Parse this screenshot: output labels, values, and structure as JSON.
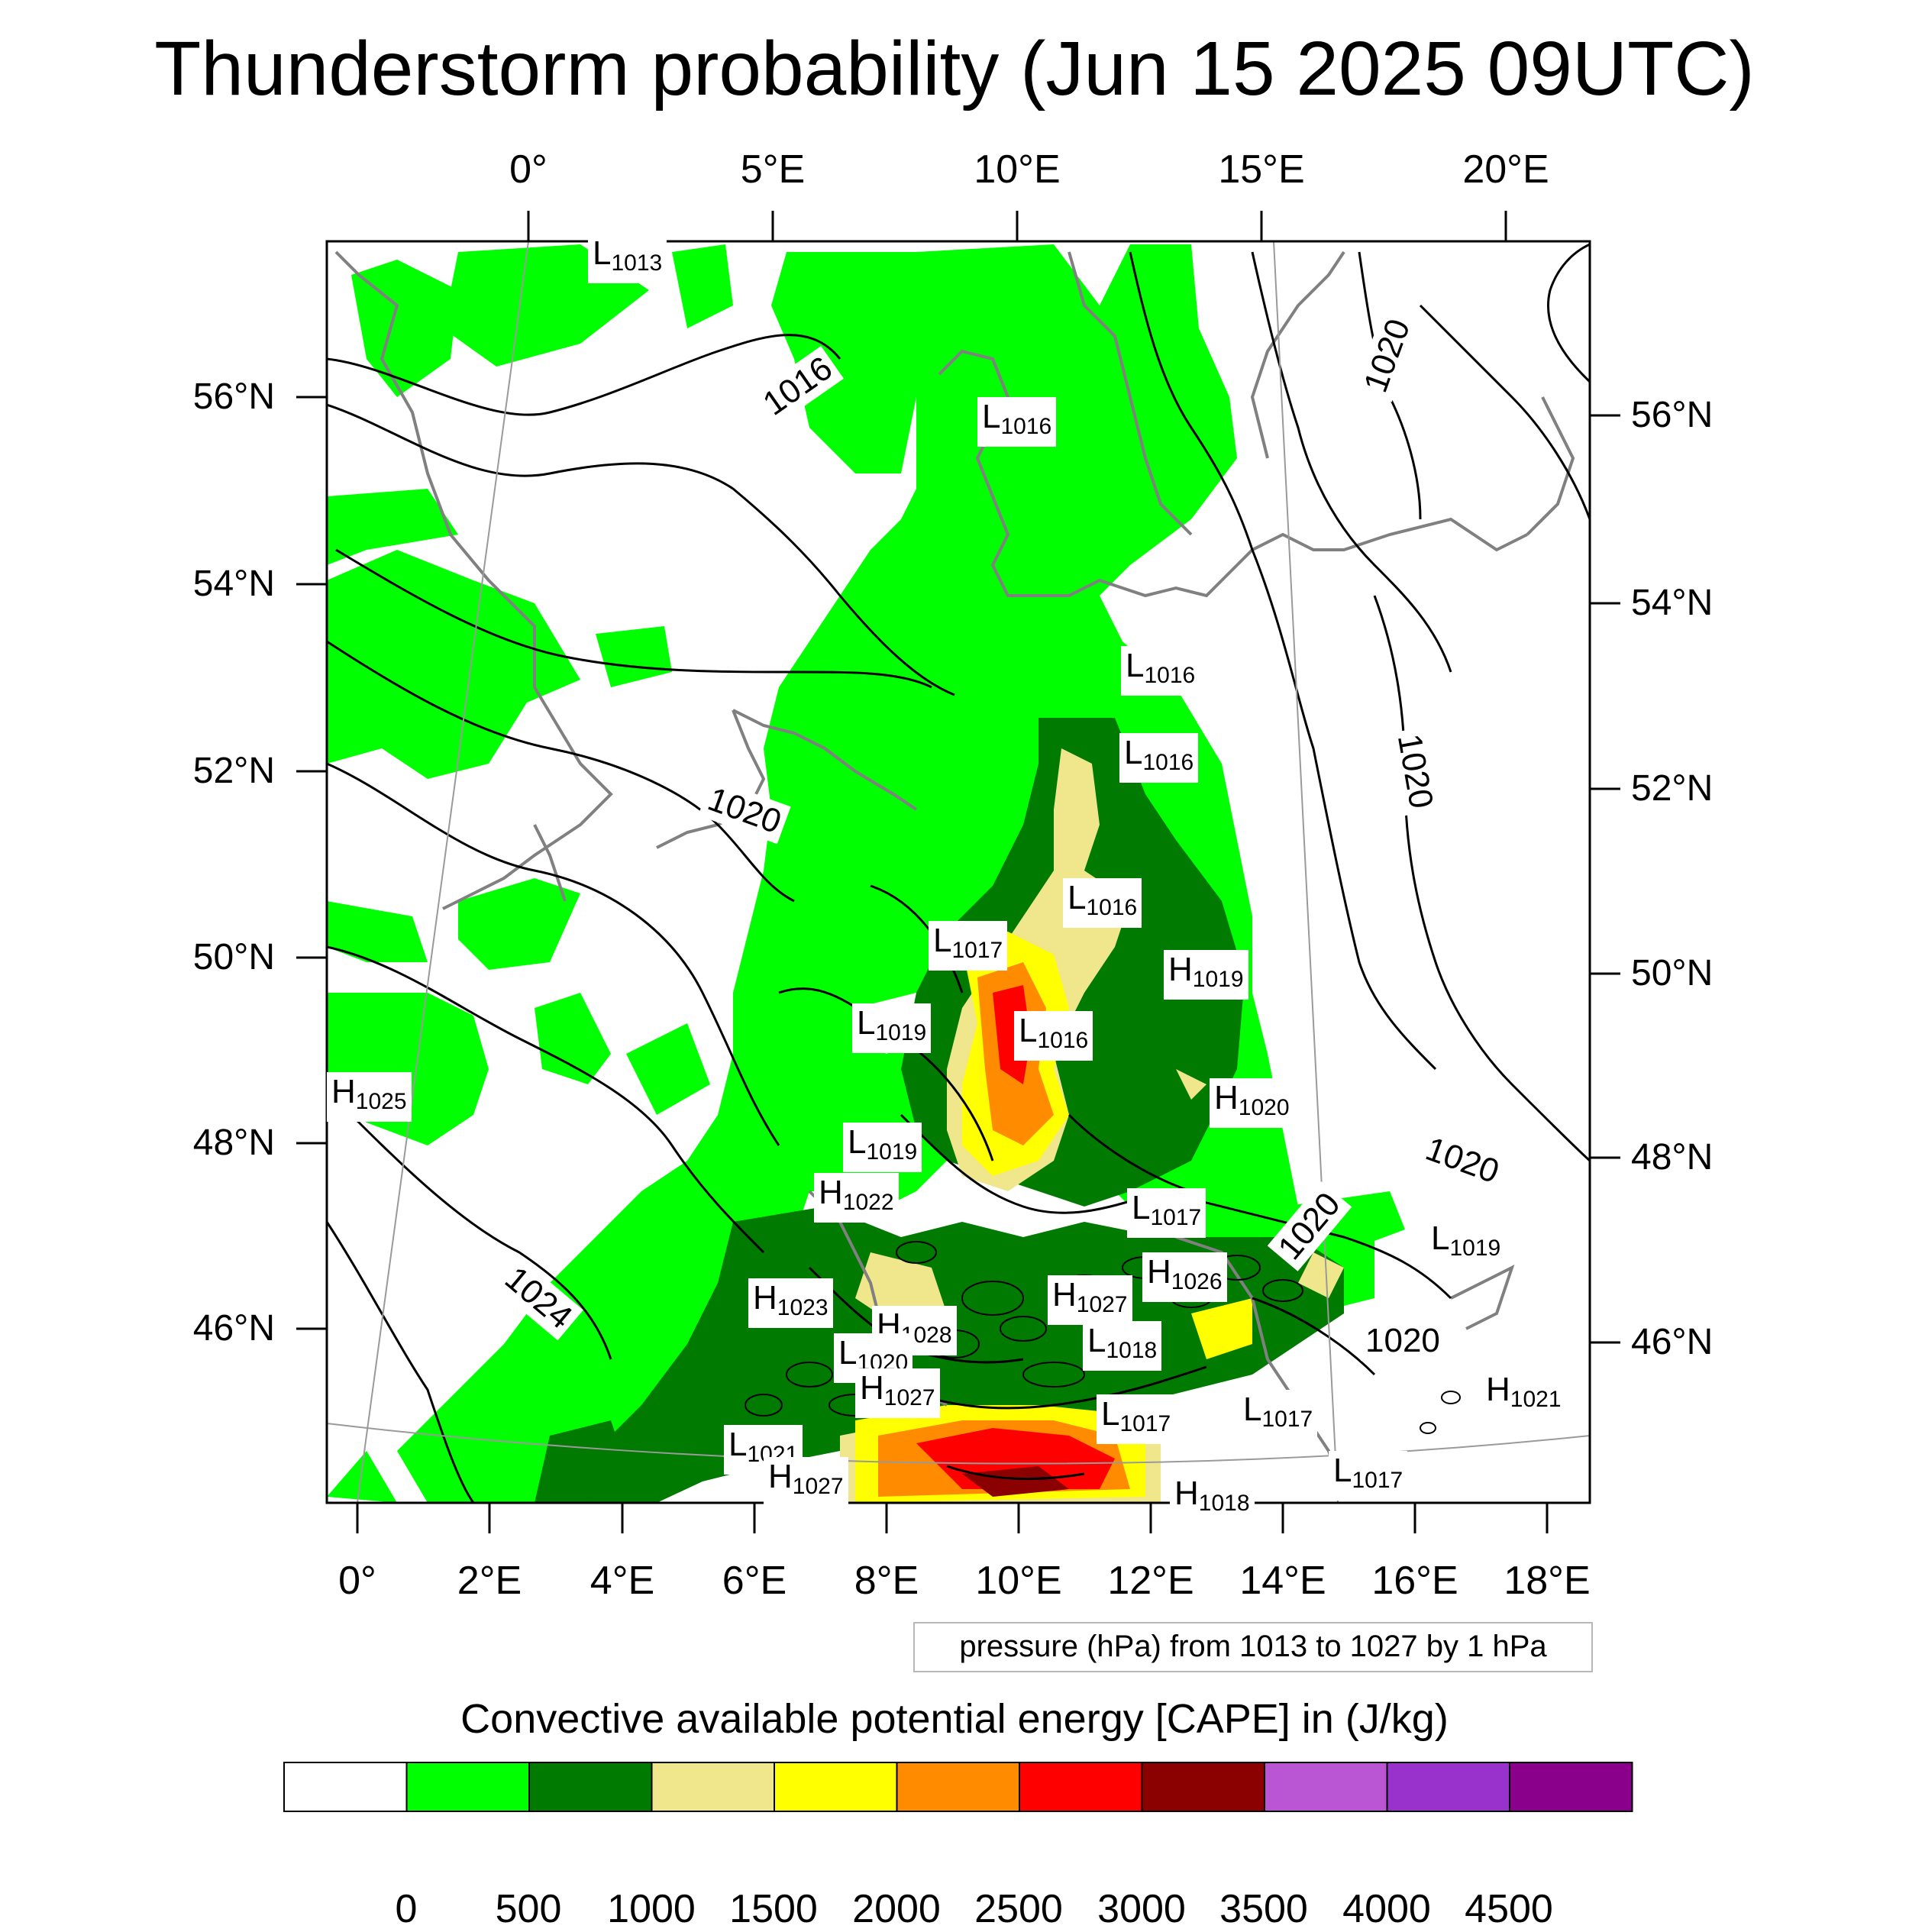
{
  "title": "Thunderstorm probability (Jun 15 2025 09UTC)",
  "top_lon_labels": [
    "0°",
    "5°E",
    "10°E",
    "15°E",
    "20°E"
  ],
  "bottom_lon_labels": [
    "0°",
    "2°E",
    "4°E",
    "6°E",
    "8°E",
    "10°E",
    "12°E",
    "14°E",
    "16°E",
    "18°E"
  ],
  "left_lat_labels": [
    "56°N",
    "54°N",
    "52°N",
    "50°N",
    "48°N",
    "46°N"
  ],
  "right_lat_labels": [
    "56°N",
    "54°N",
    "52°N",
    "50°N",
    "48°N",
    "46°N"
  ],
  "pressure_info": "pressure (hPa) from 1013 to 1027 by 1 hPa",
  "colorbar": {
    "title": "Convective available potential energy [CAPE] in (J/kg)",
    "ticks": [
      "0",
      "500",
      "1000",
      "1500",
      "2000",
      "2500",
      "3000",
      "3500",
      "4000",
      "4500"
    ],
    "colors": [
      "#ffffff",
      "#00ff00",
      "#007a00",
      "#f0e68c",
      "#ffff00",
      "#ff8c00",
      "#ff0000",
      "#8b0000",
      "#ba55d3",
      "#9932cc",
      "#8b008b"
    ]
  },
  "isobar_labels": [
    "1016",
    "1020",
    "1024",
    "1020",
    "1020",
    "1020",
    "1020",
    "1020"
  ],
  "pressure_centers": [
    {
      "type": "L",
      "value": "1013"
    },
    {
      "type": "L",
      "value": "1016"
    },
    {
      "type": "L",
      "value": "1016"
    },
    {
      "type": "L",
      "value": "1016"
    },
    {
      "type": "L",
      "value": "1016"
    },
    {
      "type": "L",
      "value": "1017"
    },
    {
      "type": "H",
      "value": "1019"
    },
    {
      "type": "L",
      "value": "1019"
    },
    {
      "type": "L",
      "value": "1016"
    },
    {
      "type": "H",
      "value": "1025"
    },
    {
      "type": "H",
      "value": "1020"
    },
    {
      "type": "L",
      "value": "1019"
    },
    {
      "type": "H",
      "value": "1022"
    },
    {
      "type": "L",
      "value": "1017"
    },
    {
      "type": "L",
      "value": "1019"
    },
    {
      "type": "H",
      "value": "1026"
    },
    {
      "type": "H",
      "value": "1023"
    },
    {
      "type": "H",
      "value": "1027"
    },
    {
      "type": "H",
      "value": "1028"
    },
    {
      "type": "L",
      "value": "1018"
    },
    {
      "type": "L",
      "value": "1020"
    },
    {
      "type": "H",
      "value": "1027"
    },
    {
      "type": "L",
      "value": "1017"
    },
    {
      "type": "L",
      "value": "1021"
    },
    {
      "type": "H",
      "value": "1027"
    },
    {
      "type": "L",
      "value": "1017"
    },
    {
      "type": "H",
      "value": "1021"
    },
    {
      "type": "L",
      "value": "1017"
    },
    {
      "type": "H",
      "value": "1018"
    }
  ]
}
